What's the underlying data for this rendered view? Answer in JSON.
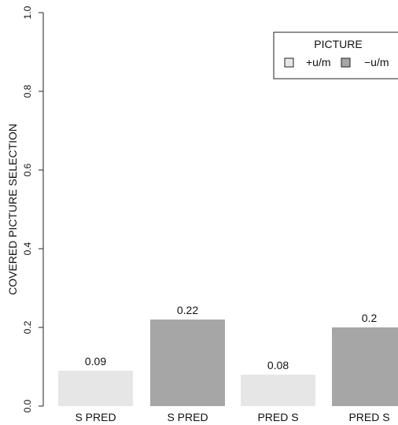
{
  "chart_data": {
    "type": "bar",
    "ylabel": "COVERED PICTURE SELECTION",
    "ylim": [
      0,
      1
    ],
    "y_ticks": [
      "0.0",
      "0.2",
      "0.4",
      "0.6",
      "0.8",
      "1.0"
    ],
    "categories": [
      "S PRED",
      "S PRED",
      "PRED S",
      "PRED S"
    ],
    "values": [
      0.09,
      0.22,
      0.08,
      0.2
    ],
    "value_labels": [
      "0.09",
      "0.22",
      "0.08",
      "0.2"
    ],
    "bar_series": [
      "+u/m",
      "−u/m",
      "+u/m",
      "−u/m"
    ],
    "grid": false,
    "legend": {
      "title": "PICTURE",
      "position": "top-right",
      "entries": [
        {
          "label": "+u/m",
          "color": "#e6e6e6"
        },
        {
          "label": "−u/m",
          "color": "#a6a6a6"
        }
      ]
    }
  }
}
